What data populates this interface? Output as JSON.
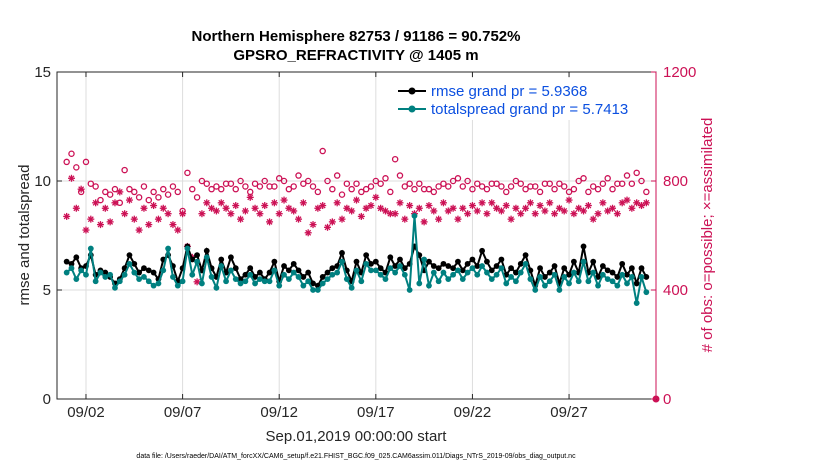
{
  "chart_data": {
    "type": "line",
    "title_line1": "Northern Hemisphere 82753 / 91186 = 90.752%",
    "title_line2": "GPSRO_REFRACTIVITY @ 1405 m",
    "xlabel": "Sep.01,2019 00:00:00 start",
    "ylabel": "rmse and totalspread",
    "y2label": "# of obs: o=possible; ×=assimilated",
    "footer": "data file: /Users/raeder/DAI/ATM_forcXX/CAM6_setup/f.e21.FHIST_BGC.f09_025.CAM6assim.011/Diags_NTrS_2019-09/obs_diag_output.nc",
    "xlim": [
      0.5,
      31.5
    ],
    "ylim": [
      0,
      15
    ],
    "y2lim": [
      0,
      1200
    ],
    "x_tick_values": [
      2,
      7,
      12,
      17,
      22,
      27
    ],
    "x_tick_labels": [
      "09/02",
      "09/07",
      "09/12",
      "09/17",
      "09/22",
      "09/27"
    ],
    "y_tick_values": [
      0,
      5,
      10,
      15
    ],
    "y_tick_labels": [
      "0",
      "5",
      "10",
      "15"
    ],
    "y2_tick_values": [
      0,
      400,
      800,
      1200
    ],
    "y2_tick_labels": [
      "0",
      "400",
      "800",
      "1200"
    ],
    "colors": {
      "rmse": "#000000",
      "totalspread": "#008080",
      "obs": "#cc1155",
      "legend_text": "#0b4fe0"
    },
    "series": [
      {
        "name": "rmse grand pr = 5.9368",
        "key": "rmse",
        "x": [
          1.0,
          1.25,
          1.5,
          1.75,
          2.0,
          2.25,
          2.5,
          2.75,
          3.0,
          3.25,
          3.5,
          3.75,
          4.0,
          4.25,
          4.5,
          4.75,
          5.0,
          5.25,
          5.5,
          5.75,
          6.0,
          6.25,
          6.5,
          6.75,
          7.0,
          7.25,
          7.5,
          7.75,
          8.0,
          8.25,
          8.5,
          8.75,
          9.0,
          9.25,
          9.5,
          9.75,
          10.0,
          10.25,
          10.5,
          10.75,
          11.0,
          11.25,
          11.5,
          11.75,
          12.0,
          12.25,
          12.5,
          12.75,
          13.0,
          13.25,
          13.5,
          13.75,
          14.0,
          14.25,
          14.5,
          14.75,
          15.0,
          15.25,
          15.5,
          15.75,
          16.0,
          16.25,
          16.5,
          16.75,
          17.0,
          17.25,
          17.5,
          17.75,
          18.0,
          18.25,
          18.5,
          18.75,
          19.0,
          19.25,
          19.5,
          19.75,
          20.0,
          20.25,
          20.5,
          20.75,
          21.0,
          21.25,
          21.5,
          21.75,
          22.0,
          22.25,
          22.5,
          22.75,
          23.0,
          23.25,
          23.5,
          23.75,
          24.0,
          24.25,
          24.5,
          24.75,
          25.0,
          25.25,
          25.5,
          25.75,
          26.0,
          26.25,
          26.5,
          26.75,
          27.0,
          27.25,
          27.5,
          27.75,
          28.0,
          28.25,
          28.5,
          28.75,
          29.0,
          29.25,
          29.5,
          29.75,
          30.0,
          30.25,
          30.5,
          30.75,
          31.0
        ],
        "values": [
          6.3,
          6.2,
          6.5,
          6.0,
          6.1,
          6.6,
          5.7,
          5.9,
          5.8,
          5.6,
          5.3,
          5.5,
          6.0,
          6.6,
          6.2,
          5.8,
          6.0,
          5.9,
          5.8,
          5.5,
          6.4,
          6.6,
          6.1,
          5.4,
          6.0,
          7.0,
          6.4,
          6.6,
          5.9,
          6.8,
          6.0,
          5.6,
          6.4,
          5.8,
          6.5,
          6.0,
          5.5,
          5.7,
          6.0,
          5.6,
          5.8,
          5.5,
          5.8,
          6.3,
          5.4,
          6.1,
          5.9,
          6.2,
          5.9,
          5.6,
          5.8,
          5.3,
          5.2,
          5.6,
          5.8,
          6.0,
          6.1,
          6.7,
          5.9,
          5.4,
          6.3,
          5.8,
          6.6,
          6.2,
          6.3,
          6.0,
          5.8,
          6.5,
          6.1,
          6.4,
          6.0,
          6.2,
          7.0,
          6.6,
          5.9,
          6.3,
          6.1,
          6.0,
          6.2,
          6.1,
          6.0,
          6.3,
          5.9,
          6.2,
          6.4,
          6.1,
          6.8,
          6.3,
          5.9,
          6.1,
          6.4,
          5.7,
          6.0,
          5.8,
          6.2,
          6.6,
          5.9,
          5.2,
          6.0,
          5.6,
          5.8,
          6.1,
          5.3,
          6.0,
          5.7,
          6.3,
          5.8,
          7.0,
          5.8,
          6.3,
          5.6,
          6.1,
          5.9,
          5.8,
          5.6,
          6.2,
          5.7,
          6.0,
          5.3,
          6.0,
          5.6
        ]
      },
      {
        "name": "totalspread grand pr = 5.7413",
        "key": "totalspread",
        "x": [
          1.0,
          1.25,
          1.5,
          1.75,
          2.0,
          2.25,
          2.5,
          2.75,
          3.0,
          3.25,
          3.5,
          3.75,
          4.0,
          4.25,
          4.5,
          4.75,
          5.0,
          5.25,
          5.5,
          5.75,
          6.0,
          6.25,
          6.5,
          6.75,
          7.0,
          7.25,
          7.5,
          7.75,
          8.0,
          8.25,
          8.5,
          8.75,
          9.0,
          9.25,
          9.5,
          9.75,
          10.0,
          10.25,
          10.5,
          10.75,
          11.0,
          11.25,
          11.5,
          11.75,
          12.0,
          12.25,
          12.5,
          12.75,
          13.0,
          13.25,
          13.5,
          13.75,
          14.0,
          14.25,
          14.5,
          14.75,
          15.0,
          15.25,
          15.5,
          15.75,
          16.0,
          16.25,
          16.5,
          16.75,
          17.0,
          17.25,
          17.5,
          17.75,
          18.0,
          18.25,
          18.5,
          18.75,
          19.0,
          19.25,
          19.5,
          19.75,
          20.0,
          20.25,
          20.5,
          20.75,
          21.0,
          21.25,
          21.5,
          21.75,
          22.0,
          22.25,
          22.5,
          22.75,
          23.0,
          23.25,
          23.5,
          23.75,
          24.0,
          24.25,
          24.5,
          24.75,
          25.0,
          25.25,
          25.5,
          25.75,
          26.0,
          26.25,
          26.5,
          26.75,
          27.0,
          27.25,
          27.5,
          27.75,
          28.0,
          28.25,
          28.5,
          28.75,
          29.0,
          29.25,
          29.5,
          29.75,
          30.0,
          30.25,
          30.5,
          30.75,
          31.0
        ],
        "values": [
          5.8,
          6.0,
          5.5,
          5.9,
          5.7,
          6.9,
          5.4,
          5.8,
          5.6,
          5.7,
          5.1,
          5.4,
          5.7,
          6.2,
          5.8,
          5.5,
          5.6,
          5.4,
          5.2,
          5.3,
          5.9,
          6.9,
          5.6,
          5.2,
          5.4,
          6.9,
          5.7,
          6.3,
          5.3,
          6.5,
          5.6,
          5.1,
          6.1,
          5.4,
          5.9,
          5.5,
          5.3,
          5.4,
          5.7,
          5.3,
          5.5,
          5.4,
          5.4,
          5.9,
          5.2,
          5.7,
          5.5,
          5.8,
          5.6,
          5.2,
          5.4,
          5.0,
          5.0,
          5.3,
          5.5,
          5.7,
          5.8,
          6.3,
          5.5,
          5.1,
          5.9,
          5.4,
          6.2,
          5.9,
          5.9,
          5.7,
          5.5,
          6.0,
          5.8,
          6.1,
          5.7,
          5.0,
          8.4,
          5.3,
          6.4,
          5.2,
          5.8,
          5.4,
          5.8,
          5.5,
          5.7,
          5.9,
          5.5,
          5.8,
          6.0,
          5.7,
          6.1,
          5.8,
          5.5,
          5.7,
          6.0,
          5.3,
          5.6,
          5.4,
          5.8,
          6.2,
          5.5,
          5.0,
          5.6,
          5.2,
          5.4,
          5.7,
          5.0,
          5.6,
          5.3,
          5.8,
          5.4,
          6.3,
          5.4,
          5.8,
          5.2,
          5.7,
          5.5,
          5.4,
          5.2,
          5.7,
          5.3,
          5.6,
          4.4,
          5.6,
          4.9
        ]
      },
      {
        "name": "possible",
        "key": "possible",
        "axis": "right",
        "marker": "circle",
        "x": [
          1.0,
          1.25,
          1.5,
          1.75,
          2.0,
          2.25,
          2.5,
          2.75,
          3.0,
          3.25,
          3.5,
          3.75,
          4.0,
          4.25,
          4.5,
          4.75,
          5.0,
          5.25,
          5.5,
          5.75,
          6.0,
          6.25,
          6.5,
          6.75,
          7.0,
          7.25,
          7.5,
          7.75,
          8.0,
          8.25,
          8.5,
          8.75,
          9.0,
          9.25,
          9.5,
          9.75,
          10.0,
          10.25,
          10.5,
          10.75,
          11.0,
          11.25,
          11.5,
          11.75,
          12.0,
          12.25,
          12.5,
          12.75,
          13.0,
          13.25,
          13.5,
          13.75,
          14.0,
          14.25,
          14.5,
          14.75,
          15.0,
          15.25,
          15.5,
          15.75,
          16.0,
          16.25,
          16.5,
          16.75,
          17.0,
          17.25,
          17.5,
          17.75,
          18.0,
          18.25,
          18.5,
          18.75,
          19.0,
          19.25,
          19.5,
          19.75,
          20.0,
          20.25,
          20.5,
          20.75,
          21.0,
          21.25,
          21.5,
          21.75,
          22.0,
          22.25,
          22.5,
          22.75,
          23.0,
          23.25,
          23.5,
          23.75,
          24.0,
          24.25,
          24.5,
          24.75,
          25.0,
          25.25,
          25.5,
          25.75,
          26.0,
          26.25,
          26.5,
          26.75,
          27.0,
          27.25,
          27.5,
          27.75,
          28.0,
          28.25,
          28.5,
          28.75,
          29.0,
          29.25,
          29.5,
          29.75,
          30.0,
          30.25,
          30.5,
          30.75,
          31.0
        ],
        "values": [
          870,
          900,
          850,
          760,
          870,
          790,
          780,
          730,
          760,
          750,
          770,
          720,
          840,
          770,
          760,
          740,
          780,
          730,
          760,
          740,
          770,
          750,
          780,
          760,
          690,
          830,
          770,
          740,
          800,
          790,
          770,
          780,
          770,
          790,
          790,
          770,
          800,
          780,
          760,
          790,
          780,
          800,
          780,
          780,
          810,
          800,
          770,
          780,
          820,
          790,
          800,
          780,
          760,
          910,
          800,
          770,
          820,
          750,
          790,
          770,
          790,
          760,
          770,
          780,
          800,
          790,
          810,
          760,
          880,
          820,
          780,
          790,
          770,
          790,
          770,
          770,
          760,
          780,
          790,
          780,
          800,
          810,
          780,
          800,
          770,
          790,
          780,
          770,
          790,
          790,
          780,
          760,
          780,
          800,
          790,
          770,
          780,
          780,
          760,
          790,
          790,
          770,
          790,
          780,
          760,
          770,
          800,
          810,
          760,
          780,
          770,
          790,
          810,
          770,
          790,
          790,
          820,
          790,
          830,
          800,
          760
        ]
      },
      {
        "name": "assimilated",
        "key": "assimilated",
        "axis": "right",
        "marker": "asterisk",
        "x": [
          1.0,
          1.25,
          1.5,
          1.75,
          2.0,
          2.25,
          2.5,
          2.75,
          3.0,
          3.25,
          3.5,
          3.75,
          4.0,
          4.25,
          4.5,
          4.75,
          5.0,
          5.25,
          5.5,
          5.75,
          6.0,
          6.25,
          6.5,
          6.75,
          7.0,
          7.25,
          7.5,
          7.75,
          8.0,
          8.25,
          8.5,
          8.75,
          9.0,
          9.25,
          9.5,
          9.75,
          10.0,
          10.25,
          10.5,
          10.75,
          11.0,
          11.25,
          11.5,
          11.75,
          12.0,
          12.25,
          12.5,
          12.75,
          13.0,
          13.25,
          13.5,
          13.75,
          14.0,
          14.25,
          14.5,
          14.75,
          15.0,
          15.25,
          15.5,
          15.75,
          16.0,
          16.25,
          16.5,
          16.75,
          17.0,
          17.25,
          17.5,
          17.75,
          18.0,
          18.25,
          18.5,
          18.75,
          19.0,
          19.25,
          19.5,
          19.75,
          20.0,
          20.25,
          20.5,
          20.75,
          21.0,
          21.25,
          21.5,
          21.75,
          22.0,
          22.25,
          22.5,
          22.75,
          23.0,
          23.25,
          23.5,
          23.75,
          24.0,
          24.25,
          24.5,
          24.75,
          25.0,
          25.25,
          25.5,
          25.75,
          26.0,
          26.25,
          26.5,
          26.75,
          27.0,
          27.25,
          27.5,
          27.75,
          28.0,
          28.25,
          28.5,
          28.75,
          29.0,
          29.25,
          29.5,
          29.75,
          30.0,
          30.25,
          30.5,
          30.75,
          31.0
        ],
        "values": [
          670,
          810,
          700,
          770,
          620,
          660,
          720,
          640,
          700,
          650,
          720,
          760,
          680,
          730,
          660,
          620,
          700,
          640,
          710,
          660,
          700,
          680,
          640,
          620,
          680,
          560,
          520,
          430,
          680,
          720,
          700,
          690,
          720,
          700,
          680,
          710,
          660,
          690,
          740,
          700,
          680,
          710,
          650,
          720,
          680,
          730,
          700,
          690,
          660,
          720,
          610,
          640,
          700,
          710,
          630,
          650,
          720,
          660,
          700,
          690,
          730,
          670,
          700,
          710,
          740,
          700,
          690,
          680,
          680,
          720,
          660,
          710,
          680,
          700,
          650,
          710,
          690,
          660,
          720,
          690,
          700,
          660,
          700,
          680,
          710,
          690,
          720,
          680,
          720,
          700,
          690,
          710,
          660,
          700,
          680,
          700,
          720,
          680,
          710,
          690,
          720,
          680,
          700,
          690,
          730,
          680,
          700,
          690,
          710,
          660,
          680,
          720,
          690,
          700,
          680,
          720,
          730,
          700,
          720,
          710,
          720
        ]
      }
    ],
    "legend": [
      "rmse grand pr = 5.9368",
      "totalspread grand pr = 5.7413"
    ],
    "legend_location": "top-right"
  }
}
